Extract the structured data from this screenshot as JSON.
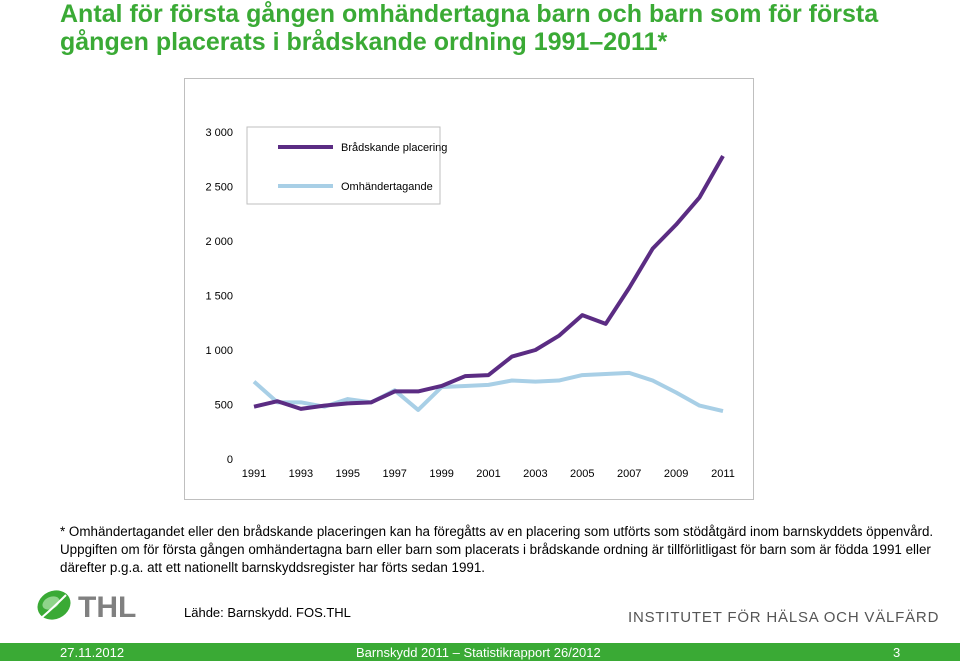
{
  "slide": {
    "title": "Antal för första gången omhändertagna barn och barn som för första gången placerats i brådskande ordning 1991–2011*",
    "footnote": "* Omhändertagandet eller den brådskande placeringen kan ha föregåtts av en placering som utförts som stödåtgärd inom barnskyddets öppenvård. Uppgiften om för första gången omhändertagna barn eller barn som placerats i brådskande ordning är tillförlitligast för barn som är födda 1991 eller därefter p.g.a. att ett nationellt barnskyddsregister har förts sedan 1991.",
    "source": "Lähde: Barnskydd. FOS.THL",
    "logo_text": "THL",
    "institute": "INSTITUTET FÖR HÄLSA OCH VÄLFÄRD",
    "colors": {
      "brand_green": "#3aaa35"
    }
  },
  "footer": {
    "date": "27.11.2012",
    "report": "Barnskydd 2011 – Statistikrapport 26/2012",
    "page": "3"
  },
  "chart_data": {
    "type": "line",
    "x": [
      1991,
      1992,
      1993,
      1994,
      1995,
      1996,
      1997,
      1998,
      1999,
      2000,
      2001,
      2002,
      2003,
      2004,
      2005,
      2006,
      2007,
      2008,
      2009,
      2010,
      2011
    ],
    "x_tick_labels": [
      "1991",
      "1993",
      "1995",
      "1997",
      "1999",
      "2001",
      "2003",
      "2005",
      "2007",
      "2009",
      "2011"
    ],
    "x_tick_values": [
      1991,
      1993,
      1995,
      1997,
      1999,
      2001,
      2003,
      2005,
      2007,
      2009,
      2011
    ],
    "y_tick_labels": [
      "0",
      "500",
      "1 000",
      "1 500",
      "2 000",
      "2 500",
      "3 000"
    ],
    "y_tick_values": [
      0,
      500,
      1000,
      1500,
      2000,
      2500,
      3000
    ],
    "ylim": [
      0,
      3000
    ],
    "xlim": [
      1991,
      2011
    ],
    "grid": false,
    "legend_position": "top-left",
    "series": [
      {
        "name": "Brådskande placering",
        "color": "#5b2c83",
        "values": [
          480,
          530,
          460,
          490,
          510,
          520,
          620,
          620,
          670,
          760,
          770,
          940,
          1000,
          1130,
          1320,
          1240,
          1570,
          1930,
          2150,
          2400,
          2780
        ]
      },
      {
        "name": "Omhändertagande",
        "color": "#a8cfe6",
        "values": [
          710,
          520,
          520,
          480,
          550,
          520,
          630,
          450,
          660,
          670,
          680,
          720,
          710,
          720,
          770,
          780,
          790,
          720,
          610,
          490,
          440
        ]
      }
    ]
  }
}
